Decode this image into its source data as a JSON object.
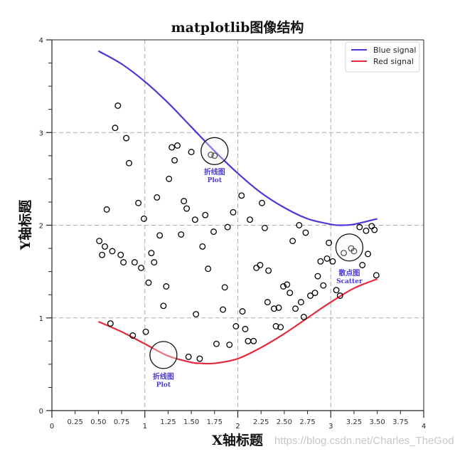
{
  "chart_data": {
    "type": "scatter",
    "title": "matplotlib图像结构",
    "xlabel": "X轴标题",
    "ylabel": "Y轴标题",
    "xlim": [
      0,
      4
    ],
    "ylim": [
      0,
      4
    ],
    "grid": true,
    "grid_style": "dashed, major ticks only",
    "legend_position": "upper right",
    "x_major_ticks": [
      "0",
      "1",
      "2",
      "3",
      "4"
    ],
    "x_minor_ticks": [
      "0.25",
      "0.50",
      "0.75",
      "1.25",
      "1.50",
      "1.75",
      "2.25",
      "2.50",
      "2.75",
      "3.25",
      "3.50",
      "3.75"
    ],
    "y_major_ticks": [
      "0",
      "1",
      "2",
      "3",
      "4"
    ],
    "y_minor_step": 0.25,
    "series": [
      {
        "name": "Blue signal",
        "type": "line",
        "color": "#4b3ad8",
        "x": [
          0.5,
          0.75,
          1.0,
          1.25,
          1.5,
          1.75,
          2.0,
          2.25,
          2.5,
          2.75,
          3.0,
          3.1,
          3.25,
          3.5
        ],
        "y": [
          3.88,
          3.74,
          3.55,
          3.32,
          3.06,
          2.8,
          2.56,
          2.35,
          2.19,
          2.07,
          2.01,
          2.0,
          2.01,
          2.07
        ]
      },
      {
        "name": "Red signal",
        "type": "line",
        "color": "#e8283c",
        "x": [
          0.5,
          0.75,
          1.0,
          1.25,
          1.5,
          1.6,
          1.75,
          2.0,
          2.25,
          2.5,
          2.75,
          3.0,
          3.25,
          3.5
        ],
        "y": [
          0.96,
          0.85,
          0.72,
          0.59,
          0.52,
          0.51,
          0.51,
          0.56,
          0.68,
          0.83,
          1.0,
          1.17,
          1.32,
          1.42
        ]
      },
      {
        "name": "scatter",
        "type": "scatter",
        "marker": "open circle",
        "color": "#000000",
        "points": [
          [
            0.71,
            3.29
          ],
          [
            0.68,
            3.05
          ],
          [
            0.8,
            2.94
          ],
          [
            0.83,
            2.67
          ],
          [
            0.93,
            2.24
          ],
          [
            0.99,
            2.07
          ],
          [
            0.59,
            2.17
          ],
          [
            1.29,
            2.84
          ],
          [
            1.35,
            2.86
          ],
          [
            1.32,
            2.7
          ],
          [
            1.5,
            2.79
          ],
          [
            1.26,
            2.5
          ],
          [
            1.71,
            2.76
          ],
          [
            1.13,
            2.3
          ],
          [
            1.42,
            2.26
          ],
          [
            1.45,
            2.18
          ],
          [
            1.54,
            2.06
          ],
          [
            1.65,
            2.11
          ],
          [
            1.39,
            1.9
          ],
          [
            1.74,
            1.93
          ],
          [
            1.89,
            1.98
          ],
          [
            1.95,
            2.14
          ],
          [
            2.04,
            2.32
          ],
          [
            2.13,
            2.06
          ],
          [
            2.26,
            2.24
          ],
          [
            2.29,
            1.97
          ],
          [
            2.66,
            2.0
          ],
          [
            2.73,
            1.92
          ],
          [
            2.59,
            1.83
          ],
          [
            0.51,
            1.83
          ],
          [
            0.57,
            1.77
          ],
          [
            0.54,
            1.68
          ],
          [
            0.65,
            1.72
          ],
          [
            0.74,
            1.68
          ],
          [
            0.77,
            1.6
          ],
          [
            0.89,
            1.6
          ],
          [
            0.96,
            1.54
          ],
          [
            1.16,
            1.89
          ],
          [
            1.07,
            1.7
          ],
          [
            1.1,
            1.6
          ],
          [
            1.04,
            1.38
          ],
          [
            1.23,
            1.34
          ],
          [
            1.2,
            1.13
          ],
          [
            1.62,
            1.77
          ],
          [
            1.68,
            1.53
          ],
          [
            1.86,
            1.33
          ],
          [
            1.84,
            1.09
          ],
          [
            2.33,
            1.51
          ],
          [
            2.2,
            1.54
          ],
          [
            2.24,
            1.57
          ],
          [
            2.05,
            1.07
          ],
          [
            1.98,
            0.91
          ],
          [
            2.08,
            0.88
          ],
          [
            2.32,
            1.17
          ],
          [
            2.39,
            1.1
          ],
          [
            2.44,
            1.11
          ],
          [
            2.41,
            0.91
          ],
          [
            2.46,
            0.9
          ],
          [
            2.49,
            1.34
          ],
          [
            2.53,
            1.36
          ],
          [
            2.56,
            1.27
          ],
          [
            2.62,
            1.1
          ],
          [
            2.68,
            1.17
          ],
          [
            2.71,
            1.01
          ],
          [
            2.78,
            1.24
          ],
          [
            2.83,
            1.27
          ],
          [
            2.86,
            1.45
          ],
          [
            2.92,
            1.35
          ],
          [
            2.89,
            1.61
          ],
          [
            2.96,
            1.64
          ],
          [
            2.98,
            1.81
          ],
          [
            3.02,
            1.61
          ],
          [
            3.06,
            1.3
          ],
          [
            3.1,
            1.24
          ],
          [
            3.14,
            1.7
          ],
          [
            3.22,
            1.75
          ],
          [
            3.25,
            1.72
          ],
          [
            3.34,
            1.57
          ],
          [
            3.4,
            1.69
          ],
          [
            3.31,
            1.98
          ],
          [
            3.38,
            1.94
          ],
          [
            3.44,
            1.99
          ],
          [
            3.47,
            1.95
          ],
          [
            3.49,
            1.46
          ],
          [
            0.63,
            0.94
          ],
          [
            0.87,
            0.81
          ],
          [
            1.01,
            0.85
          ],
          [
            1.47,
            0.58
          ],
          [
            1.59,
            0.56
          ],
          [
            1.55,
            1.04
          ],
          [
            1.77,
            0.72
          ],
          [
            1.91,
            0.71
          ],
          [
            2.11,
            0.75
          ],
          [
            2.17,
            0.75
          ],
          [
            1.75,
            2.75
          ]
        ]
      }
    ],
    "annotations": [
      {
        "text_cn": "折线图",
        "text_en": "Plot",
        "circle_center": [
          1.75,
          2.8
        ],
        "label_pos": [
          1.75,
          2.55
        ]
      },
      {
        "text_cn": "散点图",
        "text_en": "Scatter",
        "circle_center": [
          3.2,
          1.76
        ],
        "label_pos": [
          3.2,
          1.46
        ]
      },
      {
        "text_cn": "折线图",
        "text_en": "Plot",
        "circle_center": [
          1.2,
          0.6
        ],
        "label_pos": [
          1.2,
          0.34
        ]
      }
    ]
  },
  "legend": {
    "items": [
      {
        "label": "Blue signal",
        "color": "#4b3ad8"
      },
      {
        "label": "Red signal",
        "color": "#e8283c"
      }
    ]
  },
  "watermark": "https://blog.csdn.net/Charles_TheGod"
}
